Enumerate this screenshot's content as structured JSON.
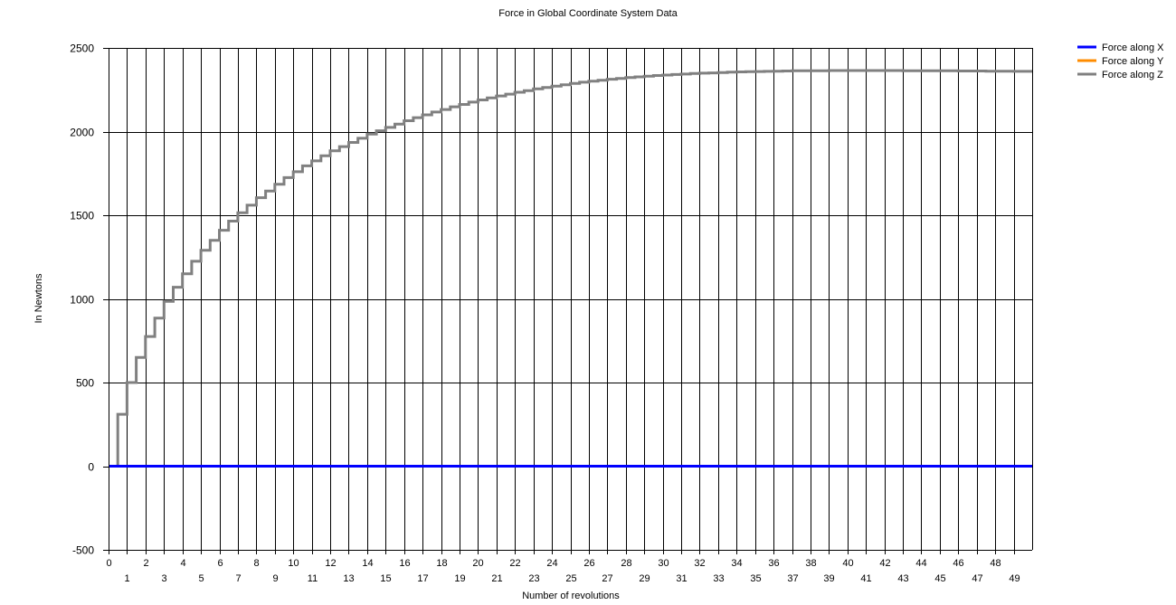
{
  "chart_data": {
    "type": "line",
    "title": "Force in Global Coordinate System Data",
    "xlabel": "Number of revolutions",
    "ylabel": "In Newtons",
    "xlim": [
      0,
      50
    ],
    "ylim": [
      -500,
      2500
    ],
    "y_ticks": [
      2500,
      2000,
      1500,
      1000,
      500,
      0,
      -500
    ],
    "x_ticks": [
      0,
      1,
      2,
      3,
      4,
      5,
      6,
      7,
      8,
      9,
      10,
      11,
      12,
      13,
      14,
      15,
      16,
      17,
      18,
      19,
      20,
      21,
      22,
      23,
      24,
      25,
      26,
      27,
      28,
      29,
      30,
      31,
      32,
      33,
      34,
      35,
      36,
      37,
      38,
      39,
      40,
      41,
      42,
      43,
      44,
      45,
      46,
      47,
      48,
      49
    ],
    "grid": true,
    "legend_position": "top-right",
    "series": [
      {
        "name": "Force along X",
        "color": "#0000ff",
        "step": false,
        "x": [
          0,
          50
        ],
        "values": [
          0,
          0
        ]
      },
      {
        "name": "Force along Y",
        "color": "#ff8c00",
        "step": false,
        "x": [
          0,
          50
        ],
        "values": [
          0,
          0
        ]
      },
      {
        "name": "Force along Z",
        "color": "#808080",
        "step": true,
        "x": [
          0,
          0.5,
          1,
          1.5,
          2,
          2.5,
          3,
          3.5,
          4,
          4.5,
          5,
          5.5,
          6,
          6.5,
          7,
          7.5,
          8,
          8.5,
          9,
          9.5,
          10,
          10.5,
          11,
          11.5,
          12,
          12.5,
          13,
          13.5,
          14,
          14.5,
          15,
          15.5,
          16,
          16.5,
          17,
          17.5,
          18,
          18.5,
          19,
          19.5,
          20,
          20.5,
          21,
          21.5,
          22,
          22.5,
          23,
          23.5,
          24,
          24.5,
          25,
          25.5,
          26,
          26.5,
          27,
          27.5,
          28,
          28.5,
          29,
          29.5,
          30,
          30.5,
          31,
          31.5,
          32,
          32.5,
          33,
          33.5,
          34,
          34.5,
          35,
          35.5,
          36,
          36.5,
          37,
          37.5,
          38,
          38.5,
          39,
          39.5,
          40,
          40.5,
          41,
          41.5,
          42,
          42.5,
          43,
          43.5,
          44,
          44.5,
          45,
          45.5,
          46,
          46.5,
          47,
          47.5,
          48,
          48.5,
          49,
          49.5,
          50
        ],
        "values": [
          0,
          310,
          500,
          650,
          775,
          885,
          985,
          1070,
          1150,
          1225,
          1290,
          1350,
          1410,
          1465,
          1515,
          1560,
          1605,
          1645,
          1685,
          1725,
          1760,
          1795,
          1825,
          1855,
          1885,
          1910,
          1935,
          1960,
          1985,
          2005,
          2025,
          2045,
          2065,
          2083,
          2100,
          2117,
          2132,
          2148,
          2162,
          2176,
          2189,
          2201,
          2213,
          2224,
          2235,
          2245,
          2255,
          2264,
          2272,
          2280,
          2288,
          2295,
          2301,
          2307,
          2313,
          2318,
          2323,
          2327,
          2331,
          2335,
          2338,
          2341,
          2344,
          2347,
          2349,
          2351,
          2353,
          2355,
          2357,
          2358,
          2359,
          2360,
          2361,
          2362,
          2363,
          2363,
          2364,
          2364,
          2365,
          2365,
          2365,
          2365,
          2365,
          2365,
          2365,
          2365,
          2364,
          2364,
          2364,
          2363,
          2363,
          2363,
          2362,
          2362,
          2362,
          2361,
          2361,
          2361,
          2360,
          2360,
          2360
        ]
      }
    ]
  }
}
